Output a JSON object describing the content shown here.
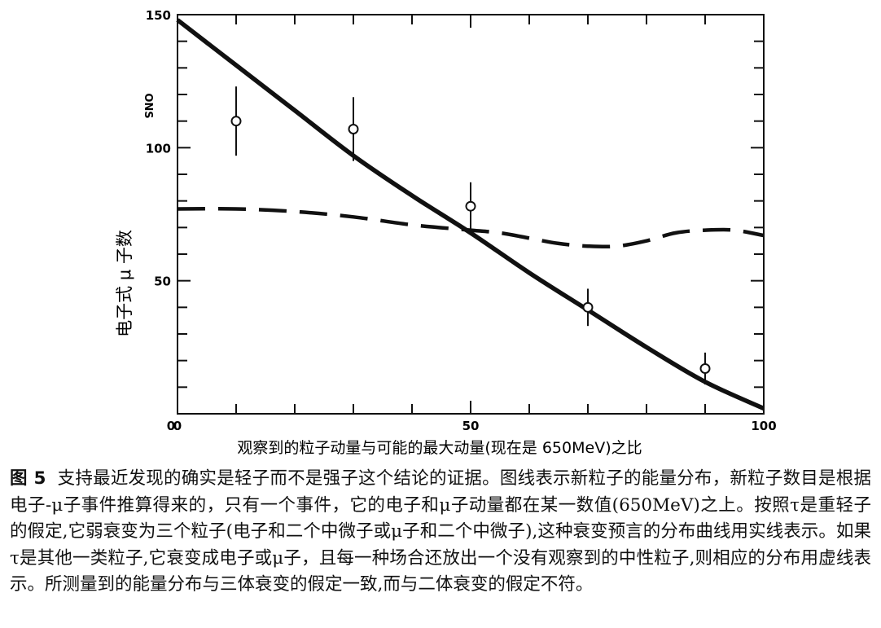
{
  "chart_data": {
    "type": "line",
    "title": "",
    "xlabel": "观察到的粒子动量与可能的最大动量(现在是 650MeV)之比",
    "ylabel": "电子式 μ 子数",
    "ylabel_top": "ONS",
    "xlim": [
      0,
      100
    ],
    "ylim": [
      0,
      150
    ],
    "x_ticks": [
      0,
      50,
      100
    ],
    "y_ticks": [
      50,
      100,
      150
    ],
    "grid": false,
    "legend": "none",
    "series": [
      {
        "style": "solid",
        "x": [
          0,
          10,
          20,
          30,
          40,
          50,
          60,
          70,
          80,
          90,
          100
        ],
        "y": [
          148,
          131,
          114,
          97,
          82,
          68,
          53,
          39,
          25,
          12,
          2
        ]
      },
      {
        "style": "dashed",
        "x": [
          0,
          10,
          20,
          30,
          40,
          50,
          55,
          60,
          65,
          70,
          75,
          80,
          85,
          90,
          95,
          100
        ],
        "y": [
          77,
          77,
          76,
          74,
          71,
          69,
          68,
          66,
          64,
          63,
          63,
          65,
          68,
          69,
          69,
          67
        ]
      }
    ],
    "points": [
      {
        "x": 10,
        "y": 110,
        "err": 13
      },
      {
        "x": 30,
        "y": 107,
        "err": 12
      },
      {
        "x": 50,
        "y": 78,
        "err": 9
      },
      {
        "x": 70,
        "y": 40,
        "err": 7
      },
      {
        "x": 90,
        "y": 17,
        "err": 6
      }
    ]
  },
  "caption": {
    "label": "图 5",
    "text": "支持最近发现的确实是轻子而不是强子这个结论的证据。图线表示新粒子的能量分布，新粒子数目是根据电子-μ子事件推算得来的，只有一个事件，它的电子和μ子动量都在某一数值(650MeV)之上。按照τ是重轻子的假定,它弱衰变为三个粒子(电子和二个中微子或μ子和二个中微子),这种衰变预言的分布曲线用实线表示。如果τ是其他一类粒子,它衰变成电子或μ子，且每一种场合还放出一个没有观察到的中性粒子,则相应的分布用虚线表示。所测量到的能量分布与三体衰变的假定一致,而与二体衰变的假定不符。"
  }
}
